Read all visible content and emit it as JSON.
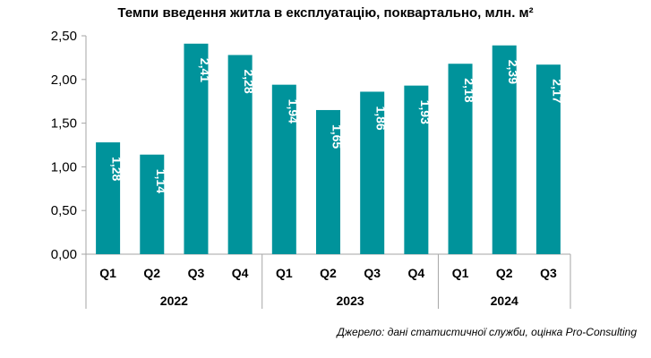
{
  "chart_data": {
    "type": "bar",
    "title": "Темпи введення житла в експлуатацію, поквартально, млн. м²",
    "categories": [
      "Q1",
      "Q2",
      "Q3",
      "Q4",
      "Q1",
      "Q2",
      "Q3",
      "Q4",
      "Q1",
      "Q2",
      "Q3"
    ],
    "groups": [
      {
        "label": "2022",
        "count": 4
      },
      {
        "label": "2023",
        "count": 4
      },
      {
        "label": "2024",
        "count": 3
      }
    ],
    "values": [
      1.28,
      1.14,
      2.41,
      2.28,
      1.94,
      1.65,
      1.86,
      1.93,
      2.18,
      2.39,
      2.17
    ],
    "data_labels": [
      "1,28",
      "1,14",
      "2,41",
      "2,28",
      "1,94",
      "1,65",
      "1,86",
      "1,93",
      "2,18",
      "2,39",
      "2,17"
    ],
    "yticks": [
      0,
      0.5,
      1,
      1.5,
      2,
      2.5
    ],
    "ytick_labels": [
      "0,00",
      "0,50",
      "1,00",
      "1,50",
      "2,00",
      "2,50"
    ],
    "ylim": [
      0,
      2.5
    ],
    "xlabel": "",
    "ylabel": "",
    "grid": false,
    "bar_color": "#00939B",
    "source": "Джерело: дані статистичної служби, оцінка Pro-Consulting"
  }
}
